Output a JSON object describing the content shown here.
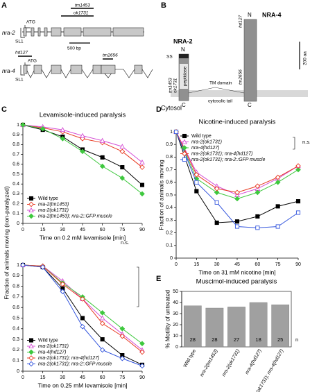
{
  "panel_labels": [
    "A",
    "B",
    "C",
    "D",
    "E"
  ],
  "gene_structure": {
    "nra2": {
      "name": "nra-2",
      "atg": "ATG",
      "sl1": "SL1",
      "deletions": [
        "tm1453",
        "ok1731"
      ]
    },
    "scale": "500 bp",
    "nra4": {
      "name": "nra-4",
      "atg": "ATG",
      "sl1": "SL1",
      "deletions": [
        "hd127",
        "tm2656"
      ]
    }
  },
  "protein_topology": {
    "nra4": "NRA-4",
    "nra2": "NRA-2",
    "n_term": "N",
    "c_term": "C",
    "signal": "SS",
    "domain": "peptidase",
    "tm": "TM domain",
    "tail": "cytosolic tail",
    "compartment": "Cytosol",
    "scale": "200 aa",
    "nra4_alleles": [
      "hd127",
      "tm2656"
    ],
    "nra2_alleles": [
      "tm1453",
      "ok1731"
    ]
  },
  "chart_data": [
    {
      "type": "line",
      "title": "Levamisole-induced paralysis",
      "ylabel": "Fraction of animals moving (non-paralyzed)",
      "xlabel": "Time on 0.2 mM levamisole [min]",
      "x": [
        0,
        15,
        30,
        45,
        60,
        75,
        90
      ],
      "xlim": [
        0,
        90
      ],
      "xticks": [
        0,
        15,
        30,
        45,
        60,
        75,
        90
      ],
      "ylim": [
        0,
        1
      ],
      "yticks": [
        0,
        0.1,
        0.2,
        0.3,
        0.4,
        0.5,
        0.6,
        0.7,
        0.8,
        0.9,
        1
      ],
      "legend": "lower left",
      "series": [
        {
          "name": "Wild type",
          "color": "#000000",
          "marker": "square",
          "values": [
            1,
            0.95,
            0.88,
            0.75,
            0.67,
            0.57,
            0.39
          ]
        },
        {
          "name": "nra-2(tm1453)",
          "color": "#e8371f",
          "marker": "diamond-open",
          "values": [
            1,
            0.97,
            0.93,
            0.86,
            0.82,
            0.73,
            0.57
          ]
        },
        {
          "name": "nra-2(ok1731)",
          "color": "#d54fd5",
          "marker": "triangle-open",
          "values": [
            1,
            0.98,
            0.95,
            0.89,
            0.84,
            0.78,
            0.62
          ]
        },
        {
          "name": "nra-2(tm1453); nra-2::GFP muscle",
          "color": "#3ec83e",
          "marker": "diamond",
          "values": [
            1,
            0.96,
            0.86,
            0.73,
            0.58,
            0.46,
            0.3
          ]
        }
      ]
    },
    {
      "type": "line",
      "xlabel": "Time on 0.25 mM levamisole [min]",
      "x": [
        0,
        15,
        30,
        45,
        60,
        75,
        90
      ],
      "xlim": [
        0,
        90
      ],
      "xticks": [
        0,
        15,
        30,
        45,
        60,
        75,
        90
      ],
      "ylim": [
        0,
        1
      ],
      "yticks": [
        0,
        0.1,
        0.2,
        0.3,
        0.4,
        0.5,
        0.6,
        0.7,
        0.8,
        0.9,
        1
      ],
      "legend": "lower left",
      "annotations": [
        "n.s."
      ],
      "series": [
        {
          "name": "Wild type",
          "color": "#000000",
          "marker": "square",
          "values": [
            1,
            0.98,
            0.78,
            0.5,
            0.3,
            0.15,
            0.06
          ]
        },
        {
          "name": "nra-2(ok1731)",
          "color": "#d54fd5",
          "marker": "triangle-open",
          "values": [
            1,
            0.99,
            0.85,
            0.68,
            0.5,
            0.35,
            0.2
          ]
        },
        {
          "name": "nra-4(hd127)",
          "color": "#3ec83e",
          "marker": "diamond",
          "values": [
            1,
            0.99,
            0.83,
            0.7,
            0.55,
            0.4,
            0.26
          ]
        },
        {
          "name": "nra-2(ok1731); nra-4(hd127)",
          "color": "#e8371f",
          "marker": "diamond-open",
          "values": [
            1,
            0.99,
            0.82,
            0.68,
            0.45,
            0.33,
            0.18
          ]
        },
        {
          "name": "nra-2(ok1731); nra-2::GFP muscle",
          "color": "#3355dd",
          "marker": "diamond-open",
          "values": [
            1,
            0.98,
            0.75,
            0.42,
            0.2,
            0.12,
            0.05
          ]
        }
      ]
    },
    {
      "type": "line",
      "title": "Nicotine-induced paralysis",
      "ylabel": "Fraction of animals moving",
      "xlabel": "Time on 31 mM nicotine [min]",
      "x": [
        0,
        15,
        30,
        45,
        60,
        75,
        90
      ],
      "xlim": [
        0,
        90
      ],
      "xticks": [
        0,
        15,
        30,
        45,
        60,
        75,
        90
      ],
      "ylim": [
        0,
        1
      ],
      "yticks": [
        0,
        0.1,
        0.2,
        0.3,
        0.4,
        0.5,
        0.6,
        0.7,
        0.8,
        0.9,
        1
      ],
      "legend": "upper left",
      "annotations": [
        "n.s."
      ],
      "series": [
        {
          "name": "Wild type",
          "color": "#000000",
          "marker": "square",
          "values": [
            1,
            0.53,
            0.28,
            0.29,
            0.33,
            0.41,
            0.45
          ]
        },
        {
          "name": "nra-2(ok1731)",
          "color": "#d54fd5",
          "marker": "triangle-open",
          "values": [
            1,
            0.68,
            0.57,
            0.5,
            0.55,
            0.63,
            0.73
          ]
        },
        {
          "name": "nra-4(hd127)",
          "color": "#3ec83e",
          "marker": "diamond",
          "values": [
            1,
            0.63,
            0.52,
            0.47,
            0.52,
            0.6,
            0.7
          ]
        },
        {
          "name": "nra-2(ok1731); nra-4(hd127)",
          "color": "#e8371f",
          "marker": "diamond-open",
          "values": [
            1,
            0.66,
            0.55,
            0.52,
            0.57,
            0.64,
            0.73
          ]
        },
        {
          "name": "nra-2(ok1731); nra-2::GFP muscle",
          "color": "#3355dd",
          "marker": "square-open",
          "values": [
            1,
            0.6,
            0.44,
            0.25,
            0.24,
            0.25,
            0.36
          ]
        }
      ]
    },
    {
      "type": "bar",
      "title": "Muscimol-induced paralysis",
      "ylabel": "% Motility of untreated",
      "categories": [
        "Wild type",
        "nra-2(tm1453)",
        "nra-2(ok1731)",
        "nra-4(hd127)",
        "nra-2(ok1731); nra-4(hd127)"
      ],
      "values": [
        37,
        35,
        36,
        40,
        38
      ],
      "color": "#a0a0a0",
      "ylim": [
        0,
        50
      ],
      "yticks": [
        0,
        10,
        20,
        30,
        40,
        50
      ],
      "n_label": "n",
      "n_values": [
        28,
        28,
        27,
        18,
        25
      ]
    }
  ]
}
